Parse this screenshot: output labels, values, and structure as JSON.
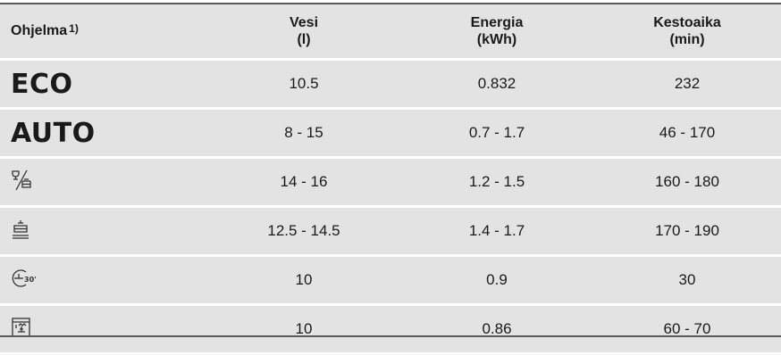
{
  "header": {
    "program": "Ohjelma",
    "program_sup": "1)",
    "water_line1": "Vesi",
    "water_line2": "(l)",
    "energy_line1": "Energia",
    "energy_line2": "(kWh)",
    "duration_line1": "Kestoaika",
    "duration_line2": "(min)"
  },
  "rows": [
    {
      "program": "ECO",
      "icon": null,
      "water": "10.5",
      "energy": "0.832",
      "duration": "232"
    },
    {
      "program": "AUTO",
      "icon": null,
      "water": "8 - 15",
      "energy": "0.7 - 1.7",
      "duration": "46 - 170"
    },
    {
      "program": "",
      "icon": "glass-dish-icon",
      "water": "14 - 16",
      "energy": "1.2 - 1.5",
      "duration": "160 - 180"
    },
    {
      "program": "",
      "icon": "pot-icon",
      "water": "12.5 - 14.5",
      "energy": "1.4 - 1.7",
      "duration": "170 - 190"
    },
    {
      "program": "",
      "icon": "timer-30-icon",
      "water": "10",
      "energy": "0.9",
      "duration": "30"
    },
    {
      "program": "",
      "icon": "rinse-hold-icon",
      "water": "10",
      "energy": "0.86",
      "duration": "60 - 70"
    }
  ]
}
